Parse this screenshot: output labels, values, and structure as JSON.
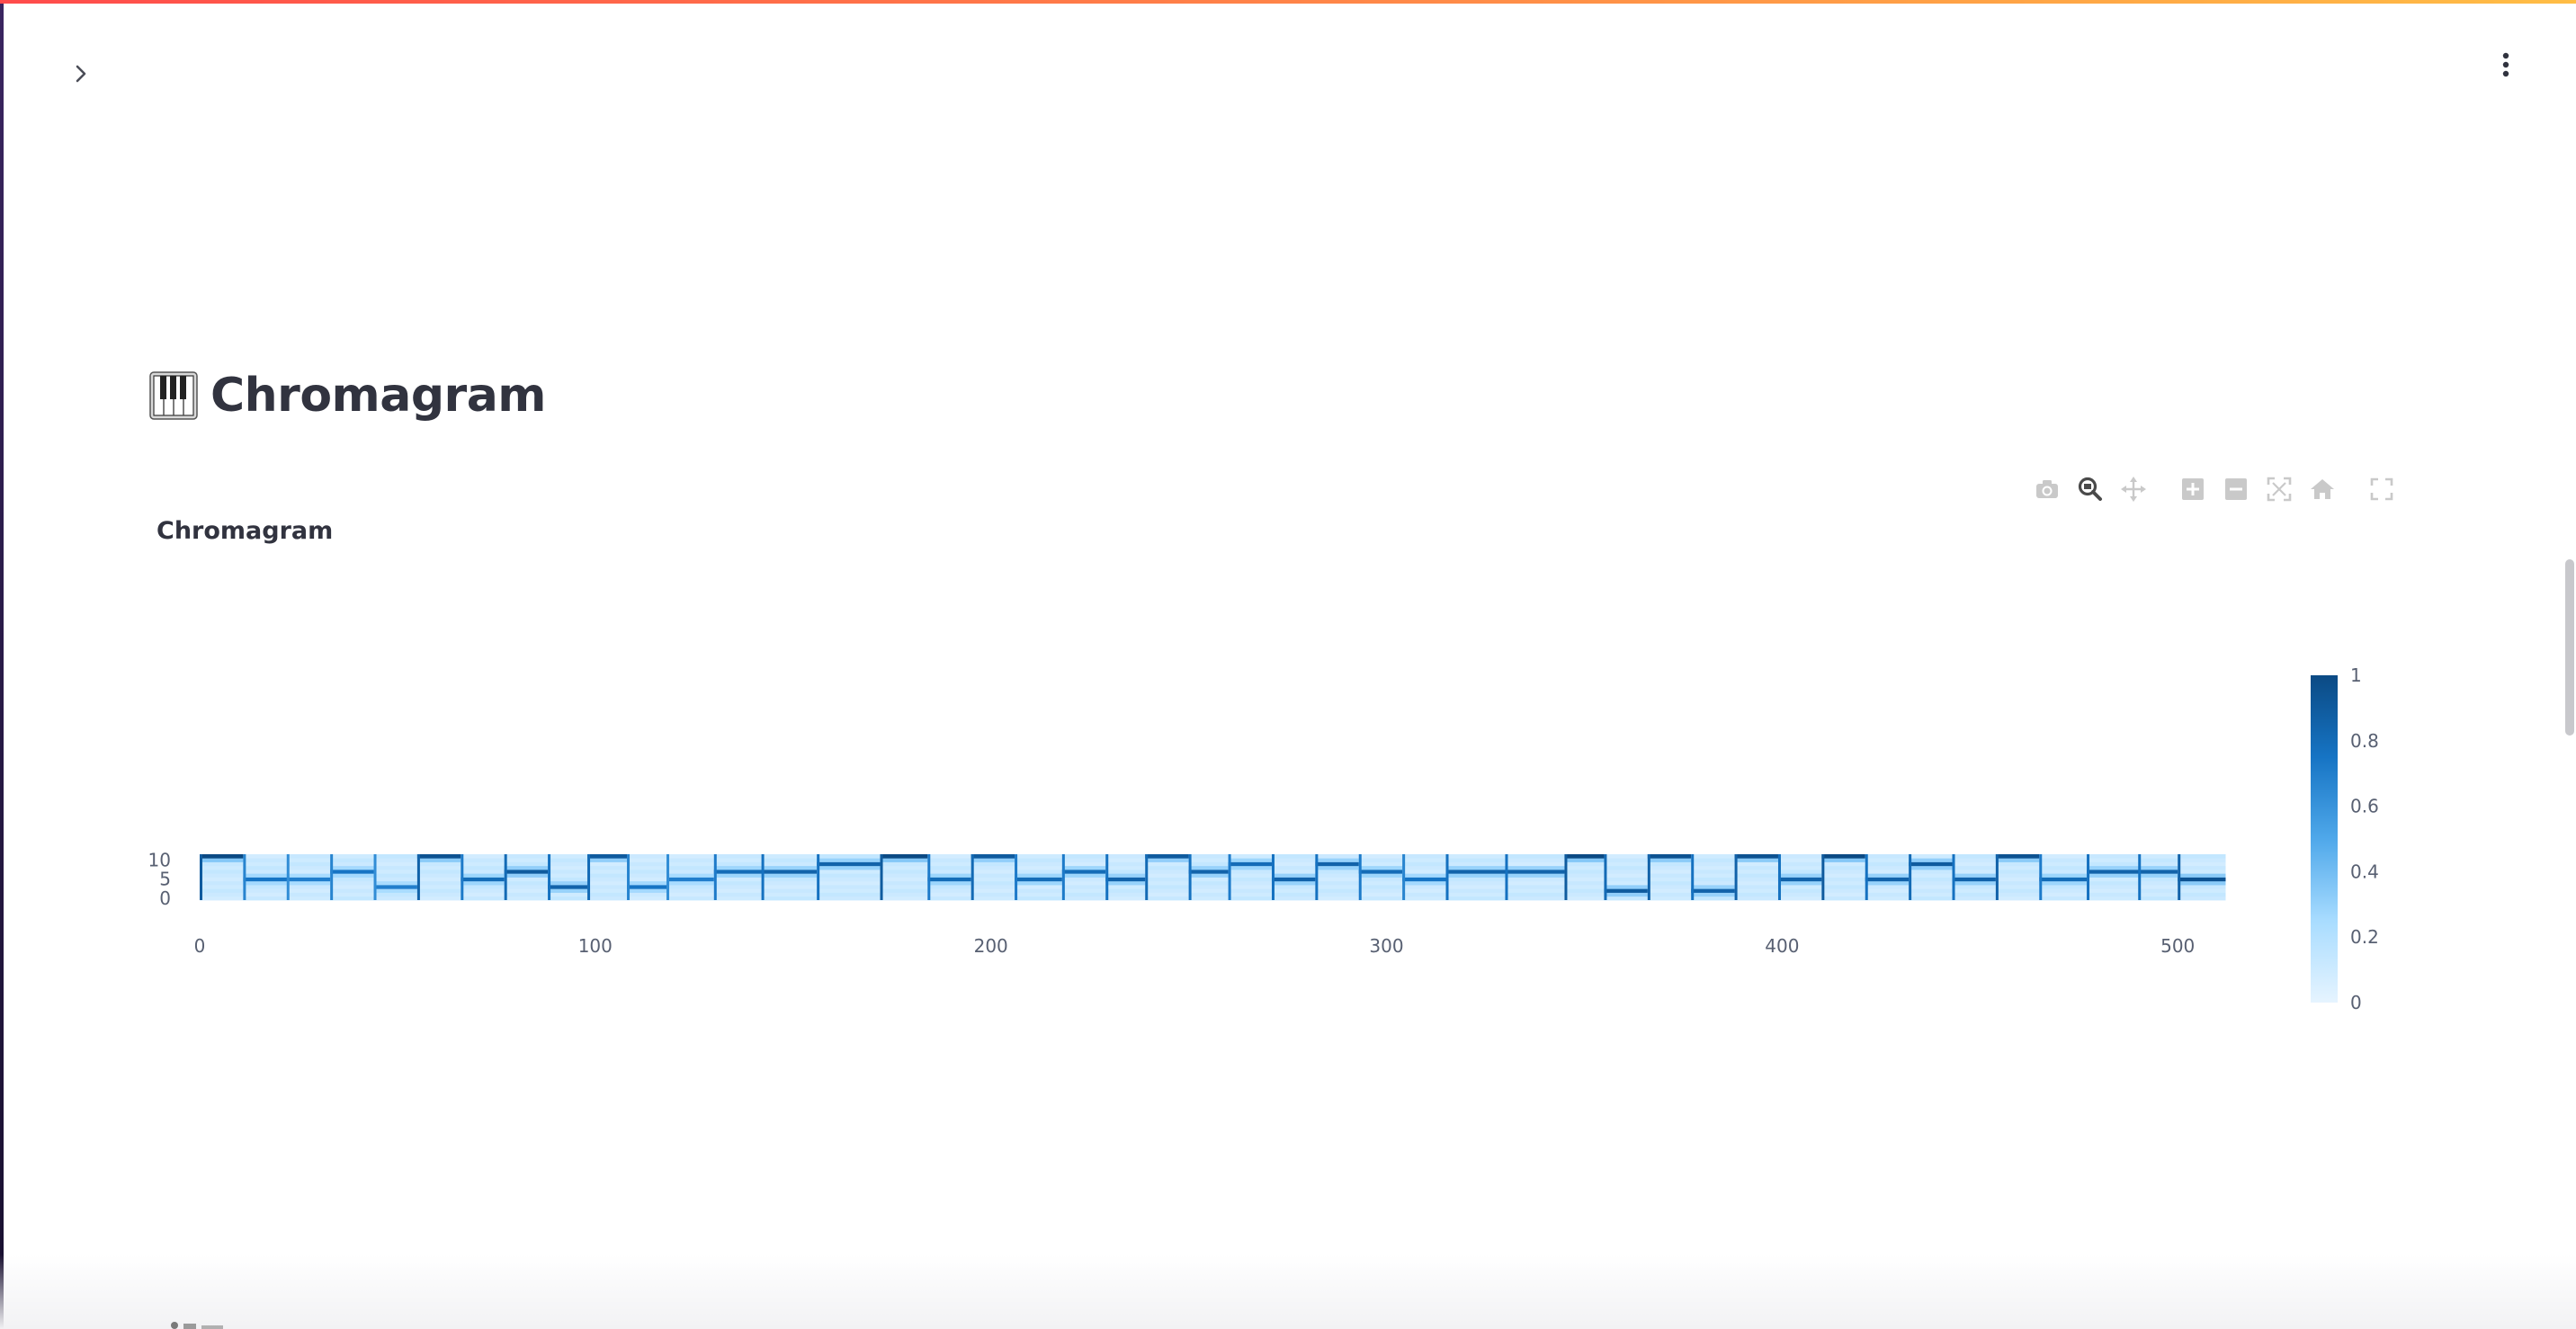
{
  "app": {
    "accent_gradient": [
      "#ff4b4b",
      "#ffbd45"
    ],
    "sidebar_toggle_icon": "chevron-right-icon",
    "main_menu_icon": "kebab-menu-icon"
  },
  "page": {
    "heading_icon": "piano-keyboard-icon",
    "heading": "Chromagram"
  },
  "modebar": {
    "buttons": [
      "camera-icon",
      "zoom-icon",
      "pan-icon",
      "zoom-in-icon",
      "zoom-out-icon",
      "autoscale-icon",
      "reset-axes-icon",
      "fullscreen-icon"
    ],
    "active": "zoom-icon"
  },
  "chart_data": {
    "type": "heatmap",
    "title": "Chromagram",
    "xlabel": "",
    "ylabel": "",
    "x_range": [
      0,
      512
    ],
    "y_range": [
      0,
      11
    ],
    "x_ticks": [
      0,
      100,
      200,
      300,
      400,
      500
    ],
    "x_tick_labels": [
      "0",
      "100",
      "200",
      "300",
      "400",
      "500"
    ],
    "y_ticks": [
      0,
      5,
      10
    ],
    "y_tick_labels": [
      "0",
      "5",
      "10"
    ],
    "colorscale": [
      "#e6f4ff",
      "#0b4a84"
    ],
    "colorbar": {
      "range": [
        0,
        1
      ],
      "ticks": [
        0,
        0.2,
        0.4,
        0.6,
        0.8,
        1
      ],
      "tick_labels": [
        "0",
        "0.2",
        "0.4",
        "0.6",
        "0.8",
        "1"
      ]
    },
    "segments_start": [
      0,
      11,
      22,
      33,
      44,
      55,
      66,
      77,
      88,
      98,
      108,
      118,
      130,
      142,
      156,
      172,
      184,
      195,
      206,
      218,
      229,
      239,
      250,
      260,
      271,
      282,
      293,
      304,
      315,
      330,
      345,
      355,
      366,
      377,
      388,
      399,
      410,
      421,
      432,
      443,
      454,
      465,
      477,
      490,
      500
    ],
    "segments_end": [
      11,
      22,
      33,
      44,
      55,
      66,
      77,
      88,
      98,
      108,
      118,
      130,
      142,
      156,
      172,
      184,
      195,
      206,
      218,
      229,
      239,
      250,
      260,
      271,
      282,
      293,
      304,
      315,
      330,
      345,
      355,
      366,
      377,
      388,
      399,
      410,
      421,
      432,
      443,
      454,
      465,
      477,
      490,
      500,
      512
    ],
    "segment_pitch": [
      11,
      5,
      5,
      7,
      3,
      11,
      5,
      7,
      3,
      11,
      3,
      5,
      7,
      7,
      9,
      11,
      5,
      11,
      5,
      7,
      5,
      11,
      7,
      9,
      5,
      9,
      7,
      5,
      7,
      7,
      11,
      2,
      11,
      2,
      11,
      5,
      11,
      5,
      9,
      5,
      11,
      5,
      7,
      7,
      5
    ],
    "segment_peak": [
      1.0,
      0.75,
      0.7,
      0.75,
      0.7,
      0.95,
      0.8,
      0.9,
      0.85,
      0.9,
      0.75,
      0.7,
      0.8,
      0.85,
      0.85,
      1.0,
      0.8,
      0.9,
      0.8,
      0.8,
      0.85,
      0.9,
      0.85,
      0.8,
      0.85,
      0.85,
      0.8,
      0.75,
      0.85,
      0.85,
      1.0,
      0.9,
      0.95,
      0.85,
      0.95,
      0.85,
      1.0,
      0.85,
      0.9,
      0.85,
      0.95,
      0.8,
      0.85,
      0.85,
      0.95
    ]
  }
}
